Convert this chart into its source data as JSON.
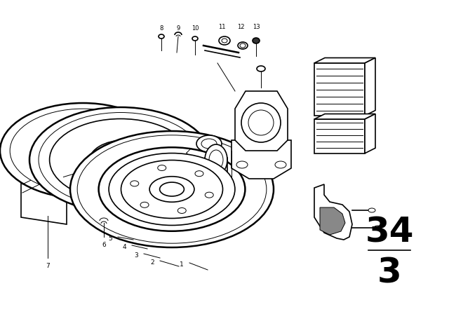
{
  "bg_color": "#ffffff",
  "line_color": "#000000",
  "fig_width": 6.4,
  "fig_height": 4.48,
  "dpi": 100,
  "part_number_top": "34",
  "part_number_bottom": "3"
}
